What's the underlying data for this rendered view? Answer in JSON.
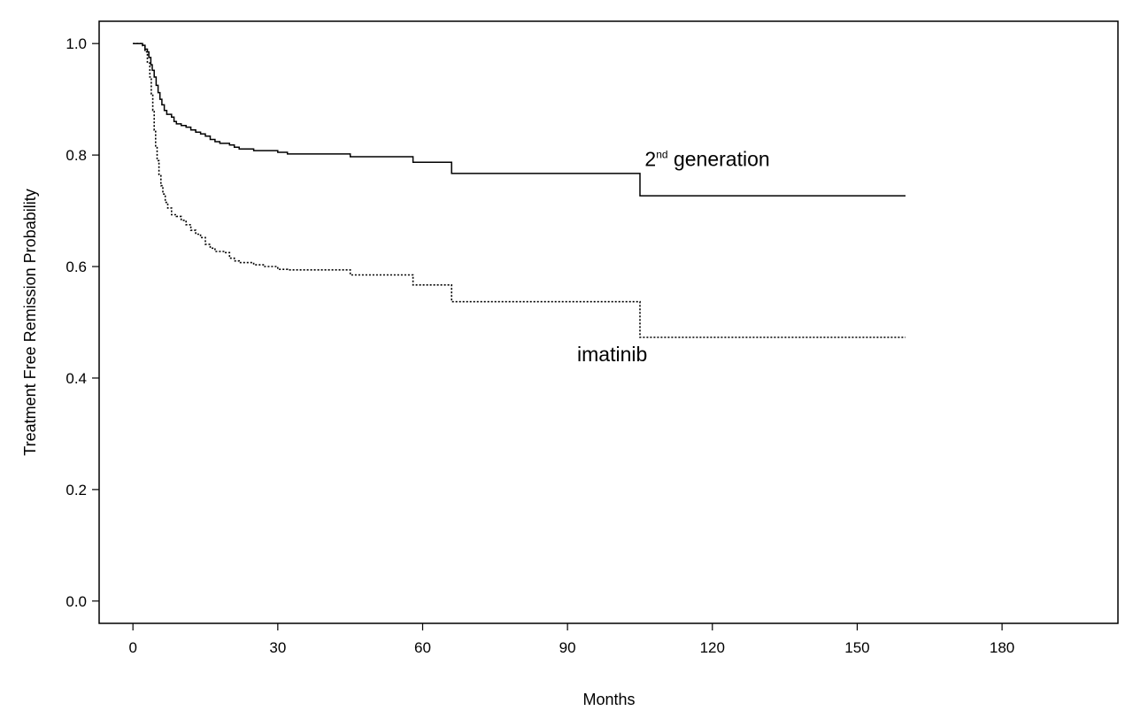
{
  "chart_data": {
    "type": "line",
    "subtype": "kaplan-meier step curves",
    "title": "",
    "xlabel": "Months",
    "ylabel": "Treatment Free Remission Probability",
    "xlim": [
      -7,
      204
    ],
    "ylim": [
      -0.04,
      1.04
    ],
    "x_ticks": [
      0,
      30,
      60,
      90,
      120,
      150,
      180
    ],
    "y_ticks": [
      "0.0",
      "0.2",
      "0.4",
      "0.6",
      "0.8",
      "1.0"
    ],
    "grid": false,
    "series": [
      {
        "name": "2nd generation",
        "line_style": "solid",
        "color": "#000000",
        "label_main": "2",
        "label_sup": "nd",
        "label_rest": " generation",
        "points": [
          [
            0,
            1.0
          ],
          [
            1.5,
            1.0
          ],
          [
            2,
            0.997
          ],
          [
            2.5,
            0.99
          ],
          [
            3,
            0.985
          ],
          [
            3.3,
            0.975
          ],
          [
            3.7,
            0.962
          ],
          [
            4,
            0.952
          ],
          [
            4.4,
            0.94
          ],
          [
            4.8,
            0.925
          ],
          [
            5.2,
            0.912
          ],
          [
            5.6,
            0.9
          ],
          [
            6,
            0.89
          ],
          [
            6.5,
            0.88
          ],
          [
            7,
            0.873
          ],
          [
            8,
            0.868
          ],
          [
            8.5,
            0.86
          ],
          [
            9,
            0.856
          ],
          [
            10,
            0.853
          ],
          [
            11,
            0.85
          ],
          [
            12,
            0.845
          ],
          [
            13,
            0.841
          ],
          [
            14,
            0.838
          ],
          [
            15,
            0.834
          ],
          [
            16,
            0.828
          ],
          [
            17,
            0.824
          ],
          [
            18,
            0.821
          ],
          [
            20,
            0.818
          ],
          [
            21,
            0.814
          ],
          [
            22,
            0.811
          ],
          [
            25,
            0.808
          ],
          [
            27,
            0.808
          ],
          [
            30,
            0.805
          ],
          [
            32,
            0.802
          ],
          [
            45,
            0.797
          ],
          [
            58,
            0.787
          ],
          [
            66,
            0.767
          ],
          [
            105,
            0.727
          ],
          [
            160,
            0.727
          ]
        ]
      },
      {
        "name": "imatinib",
        "line_style": "dotted",
        "color": "#000000",
        "label_main": "imatinib",
        "points": [
          [
            0,
            1.0
          ],
          [
            1.5,
            1.0
          ],
          [
            2,
            0.995
          ],
          [
            2.5,
            0.985
          ],
          [
            3,
            0.965
          ],
          [
            3.5,
            0.94
          ],
          [
            3.8,
            0.91
          ],
          [
            4.1,
            0.88
          ],
          [
            4.4,
            0.845
          ],
          [
            4.7,
            0.815
          ],
          [
            5,
            0.79
          ],
          [
            5.4,
            0.765
          ],
          [
            5.8,
            0.745
          ],
          [
            6.2,
            0.73
          ],
          [
            6.7,
            0.715
          ],
          [
            7.2,
            0.705
          ],
          [
            8,
            0.693
          ],
          [
            9,
            0.69
          ],
          [
            10,
            0.683
          ],
          [
            11,
            0.675
          ],
          [
            12,
            0.665
          ],
          [
            13,
            0.658
          ],
          [
            14,
            0.652
          ],
          [
            15,
            0.64
          ],
          [
            16,
            0.633
          ],
          [
            17,
            0.627
          ],
          [
            19,
            0.625
          ],
          [
            20,
            0.615
          ],
          [
            21,
            0.61
          ],
          [
            22,
            0.607
          ],
          [
            25,
            0.603
          ],
          [
            27,
            0.6
          ],
          [
            30,
            0.595
          ],
          [
            32,
            0.594
          ],
          [
            45,
            0.585
          ],
          [
            58,
            0.567
          ],
          [
            66,
            0.537
          ],
          [
            105,
            0.473
          ],
          [
            160,
            0.473
          ]
        ]
      }
    ],
    "annotations": [
      {
        "series": "2nd generation",
        "text": "2nd generation",
        "x": 106,
        "y": 0.78
      },
      {
        "series": "imatinib",
        "text": "imatinib",
        "x": 92,
        "y": 0.43
      }
    ]
  }
}
